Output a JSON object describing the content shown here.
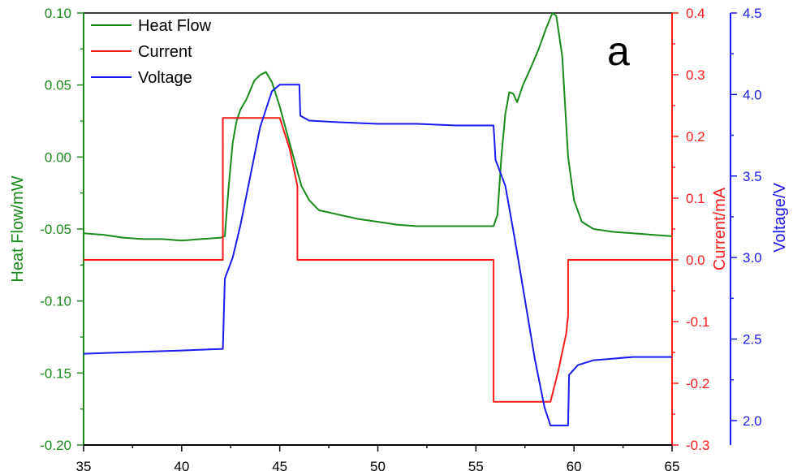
{
  "chart_data": {
    "type": "line",
    "panel_label": "a",
    "xlim": [
      35,
      65
    ],
    "x_ticks": [
      "35",
      "40",
      "45",
      "50",
      "55",
      "60",
      "65"
    ],
    "axes": {
      "heat": {
        "label": "Heat Flow/mW",
        "color": "#1a8a1a",
        "ylim": [
          -0.2,
          0.1
        ],
        "ticks": [
          "0.10",
          "0.05",
          "0.00",
          "-0.05",
          "-0.10",
          "-0.15",
          "-0.20"
        ]
      },
      "current": {
        "label": "Current/mA",
        "color": "#ff1a1a",
        "ylim": [
          -0.3,
          0.4
        ],
        "ticks": [
          "0.4",
          "0.3",
          "0.2",
          "0.1",
          "0.0",
          "-0.1",
          "-0.2",
          "-0.3"
        ]
      },
      "voltage": {
        "label": "Voltage/V",
        "color": "#1a1aee",
        "ylim": [
          1.85,
          4.5
        ],
        "ticks": [
          "4.5",
          "4.0",
          "3.5",
          "3.0",
          "2.5",
          "2.0"
        ]
      }
    },
    "legend": {
      "placement": "top-left",
      "entries": [
        "Heat Flow",
        "Current",
        "Voltage"
      ]
    },
    "series": [
      {
        "name": "Heat Flow",
        "axis": "heat",
        "color": "#1a8a1a",
        "points": [
          [
            35,
            -0.053
          ],
          [
            36,
            -0.054
          ],
          [
            37,
            -0.056
          ],
          [
            38,
            -0.057
          ],
          [
            39,
            -0.057
          ],
          [
            40,
            -0.058
          ],
          [
            41,
            -0.057
          ],
          [
            42,
            -0.056
          ],
          [
            42.2,
            -0.055
          ],
          [
            42.4,
            -0.02
          ],
          [
            42.6,
            0.01
          ],
          [
            42.8,
            0.025
          ],
          [
            43,
            0.033
          ],
          [
            43.3,
            0.04
          ],
          [
            43.7,
            0.053
          ],
          [
            44,
            0.057
          ],
          [
            44.3,
            0.059
          ],
          [
            44.6,
            0.052
          ],
          [
            45,
            0.035
          ],
          [
            45.4,
            0.015
          ],
          [
            45.8,
            -0.005
          ],
          [
            46.1,
            -0.02
          ],
          [
            46.5,
            -0.03
          ],
          [
            47,
            -0.037
          ],
          [
            48,
            -0.04
          ],
          [
            49,
            -0.043
          ],
          [
            50,
            -0.045
          ],
          [
            51,
            -0.047
          ],
          [
            52,
            -0.048
          ],
          [
            53,
            -0.048
          ],
          [
            54,
            -0.048
          ],
          [
            55,
            -0.048
          ],
          [
            55.9,
            -0.048
          ],
          [
            56.1,
            -0.04
          ],
          [
            56.3,
            0.0
          ],
          [
            56.5,
            0.03
          ],
          [
            56.7,
            0.045
          ],
          [
            56.9,
            0.044
          ],
          [
            57.1,
            0.038
          ],
          [
            57.4,
            0.05
          ],
          [
            57.8,
            0.062
          ],
          [
            58.2,
            0.075
          ],
          [
            58.6,
            0.09
          ],
          [
            58.9,
            0.1
          ],
          [
            59.1,
            0.098
          ],
          [
            59.4,
            0.07
          ],
          [
            59.7,
            0.0
          ],
          [
            60,
            -0.03
          ],
          [
            60.4,
            -0.045
          ],
          [
            61,
            -0.05
          ],
          [
            62,
            -0.052
          ],
          [
            63,
            -0.053
          ],
          [
            64,
            -0.054
          ],
          [
            65,
            -0.055
          ]
        ]
      },
      {
        "name": "Current",
        "axis": "current",
        "color": "#ff1a1a",
        "points": [
          [
            35,
            0.0
          ],
          [
            42.1,
            0.0
          ],
          [
            42.1,
            0.23
          ],
          [
            45,
            0.23
          ],
          [
            45.5,
            0.18
          ],
          [
            45.9,
            0.12
          ],
          [
            45.9,
            0.0
          ],
          [
            55.9,
            0.0
          ],
          [
            55.9,
            -0.23
          ],
          [
            58.8,
            -0.23
          ],
          [
            59.2,
            -0.18
          ],
          [
            59.6,
            -0.12
          ],
          [
            59.7,
            -0.09
          ],
          [
            59.7,
            0.0
          ],
          [
            65,
            0.0
          ]
        ]
      },
      {
        "name": "Voltage",
        "axis": "voltage",
        "color": "#1a1aee",
        "points": [
          [
            35,
            2.41
          ],
          [
            40,
            2.43
          ],
          [
            42.1,
            2.44
          ],
          [
            42.2,
            2.87
          ],
          [
            42.6,
            3.0
          ],
          [
            43,
            3.2
          ],
          [
            43.5,
            3.5
          ],
          [
            44,
            3.8
          ],
          [
            44.6,
            4.02
          ],
          [
            45,
            4.06
          ],
          [
            46,
            4.06
          ],
          [
            46.05,
            3.87
          ],
          [
            46.5,
            3.84
          ],
          [
            48,
            3.83
          ],
          [
            50,
            3.82
          ],
          [
            52,
            3.82
          ],
          [
            54,
            3.81
          ],
          [
            55.9,
            3.81
          ],
          [
            56,
            3.6
          ],
          [
            56.5,
            3.44
          ],
          [
            57,
            3.1
          ],
          [
            57.5,
            2.74
          ],
          [
            58,
            2.38
          ],
          [
            58.5,
            2.08
          ],
          [
            58.8,
            1.97
          ],
          [
            59.7,
            1.97
          ],
          [
            59.75,
            2.28
          ],
          [
            60.2,
            2.34
          ],
          [
            61,
            2.37
          ],
          [
            62,
            2.38
          ],
          [
            63,
            2.39
          ],
          [
            65,
            2.39
          ]
        ]
      }
    ]
  }
}
